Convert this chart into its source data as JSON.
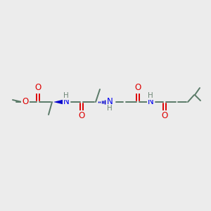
{
  "bg_color": "#ececec",
  "bond_color": "#5a7a68",
  "o_color": "#dd0000",
  "n_color": "#0000ee",
  "h_color": "#708878",
  "wedge_color": "#0000cc",
  "dash_color": "#0000cc",
  "figsize": [
    3.0,
    3.0
  ],
  "dpi": 100,
  "xlim": [
    0,
    300
  ],
  "ylim": [
    0,
    300
  ]
}
